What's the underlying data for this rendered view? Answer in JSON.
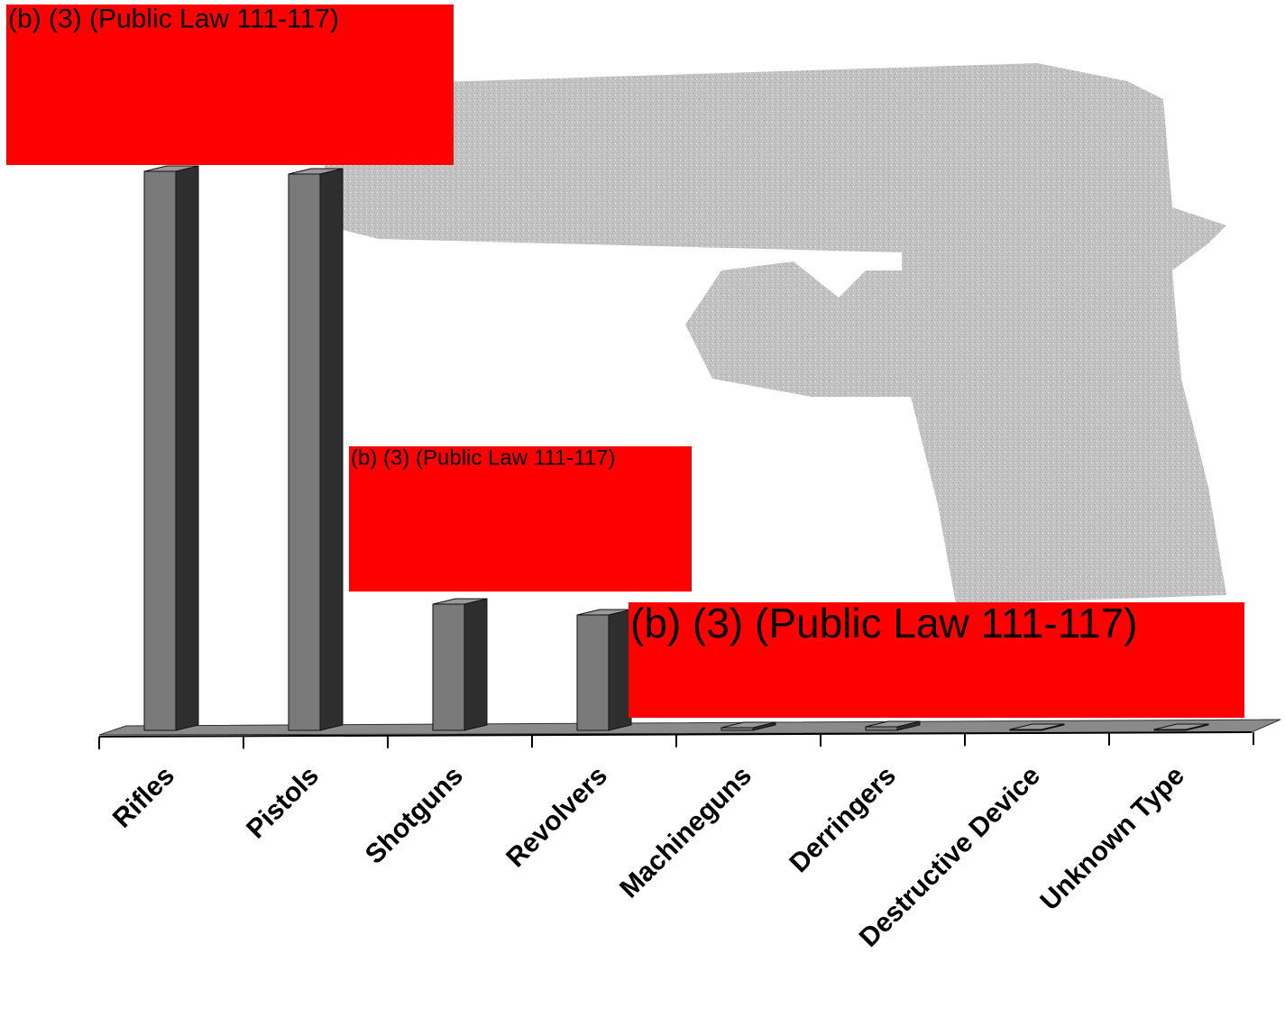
{
  "chart_data": {
    "type": "bar3d",
    "categories": [
      "Rifles",
      "Pistols",
      "Shotguns",
      "Revolvers",
      "Machineguns",
      "Derringers",
      "Destructive Device",
      "Unknown Type"
    ],
    "values": [
      620,
      617,
      140,
      128,
      3,
      4,
      1,
      1
    ],
    "color": "#7a7a7a",
    "ylim": [
      0,
      620
    ],
    "annotations": [
      "(b) (3) (Public Law 111-117)",
      "(b) (3) (Public Law 111-117)",
      "(b) (3) (Public Law 111-117)"
    ]
  }
}
